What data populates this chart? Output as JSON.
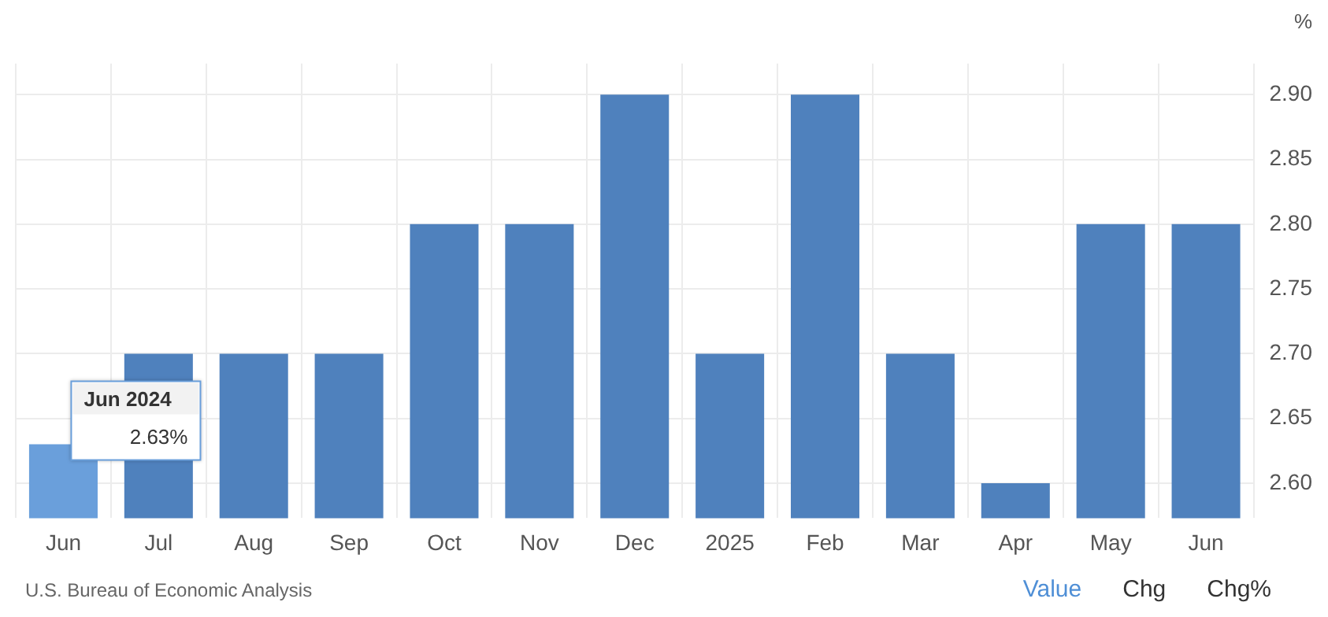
{
  "chart_data": {
    "type": "bar",
    "ylabel": "%",
    "categories": [
      "Jun",
      "Jul",
      "Aug",
      "Sep",
      "Oct",
      "Nov",
      "Dec",
      "2025",
      "Feb",
      "Mar",
      "Apr",
      "May",
      "Jun"
    ],
    "values": [
      2.63,
      2.7,
      2.7,
      2.7,
      2.8,
      2.8,
      2.9,
      2.7,
      2.9,
      2.7,
      2.6,
      2.8,
      2.8
    ],
    "colors": [
      "#6a9fdb",
      "#4f81bd",
      "#4f81bd",
      "#4f81bd",
      "#4f81bd",
      "#4f81bd",
      "#4f81bd",
      "#4f81bd",
      "#4f81bd",
      "#4f81bd",
      "#4f81bd",
      "#4f81bd",
      "#4f81bd"
    ],
    "ylim": [
      2.573,
      2.924
    ],
    "yticks": [
      {
        "value": 2.6,
        "label": "2.60"
      },
      {
        "value": 2.65,
        "label": "2.65"
      },
      {
        "value": 2.7,
        "label": "2.70"
      },
      {
        "value": 2.75,
        "label": "2.75"
      },
      {
        "value": 2.8,
        "label": "2.80"
      },
      {
        "value": 2.85,
        "label": "2.85"
      },
      {
        "value": 2.9,
        "label": "2.90"
      }
    ],
    "grid": true,
    "legend": false,
    "annotations": [
      {
        "text": "Jun 2024",
        "x": "Jun",
        "y": 2.63
      },
      "2.63%",
      "U.S. Bureau of Economic Analysis",
      "Value",
      "Chg",
      "Chg%"
    ]
  }
}
